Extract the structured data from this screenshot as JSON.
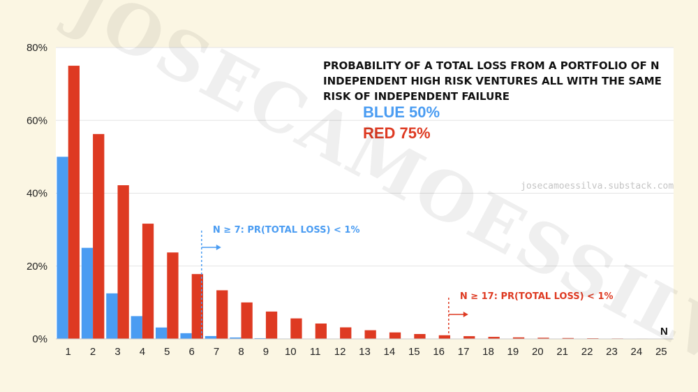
{
  "chart_data": {
    "type": "bar",
    "title_lines": [
      "PROBABILITY OF A TOTAL LOSS FROM A PORTFOLIO OF N",
      "INDEPENDENT HIGH RISK VENTURES ALL WITH THE SAME",
      "RISK OF INDEPENDENT FAILURE"
    ],
    "legend": [
      {
        "label": "BLUE 50%",
        "color": "#4a9cf2"
      },
      {
        "label": "RED 75%",
        "color": "#de3a22"
      }
    ],
    "categories": [
      "1",
      "2",
      "3",
      "4",
      "5",
      "6",
      "7",
      "8",
      "9",
      "10",
      "11",
      "12",
      "13",
      "14",
      "15",
      "16",
      "17",
      "18",
      "19",
      "20",
      "21",
      "22",
      "23",
      "24",
      "25"
    ],
    "series": [
      {
        "name": "BLUE 50%",
        "color": "#4a9cf2",
        "values": [
          50,
          25,
          12.5,
          6.25,
          3.13,
          1.56,
          0.78,
          0.39,
          0.2,
          0.1,
          0.05,
          0.02,
          0.01,
          0.01,
          0,
          0,
          0,
          0,
          0,
          0,
          0,
          0,
          0,
          0,
          0
        ]
      },
      {
        "name": "RED 75%",
        "color": "#de3a22",
        "values": [
          75,
          56.25,
          42.19,
          31.64,
          23.73,
          17.8,
          13.35,
          10.01,
          7.51,
          5.63,
          4.22,
          3.17,
          2.38,
          1.78,
          1.34,
          1.0,
          0.75,
          0.56,
          0.42,
          0.32,
          0.24,
          0.18,
          0.13,
          0.1,
          0.08
        ]
      }
    ],
    "y_ticks": [
      "0%",
      "20%",
      "40%",
      "60%",
      "80%"
    ],
    "ylim": [
      0,
      80
    ],
    "xlabel": "N",
    "ylabel": "",
    "grid": true,
    "annotations": [
      {
        "text": "N ≥ 7: PR(TOTAL LOSS) < 1%",
        "at_category": "7",
        "color": "#4a9cf2"
      },
      {
        "text": "N ≥ 17: PR(TOTAL LOSS) < 1%",
        "at_category": "17",
        "color": "#de3a22"
      }
    ]
  },
  "watermark": "JOSECAMOESSILVA",
  "credit": "josecamoessilva.substack.com"
}
